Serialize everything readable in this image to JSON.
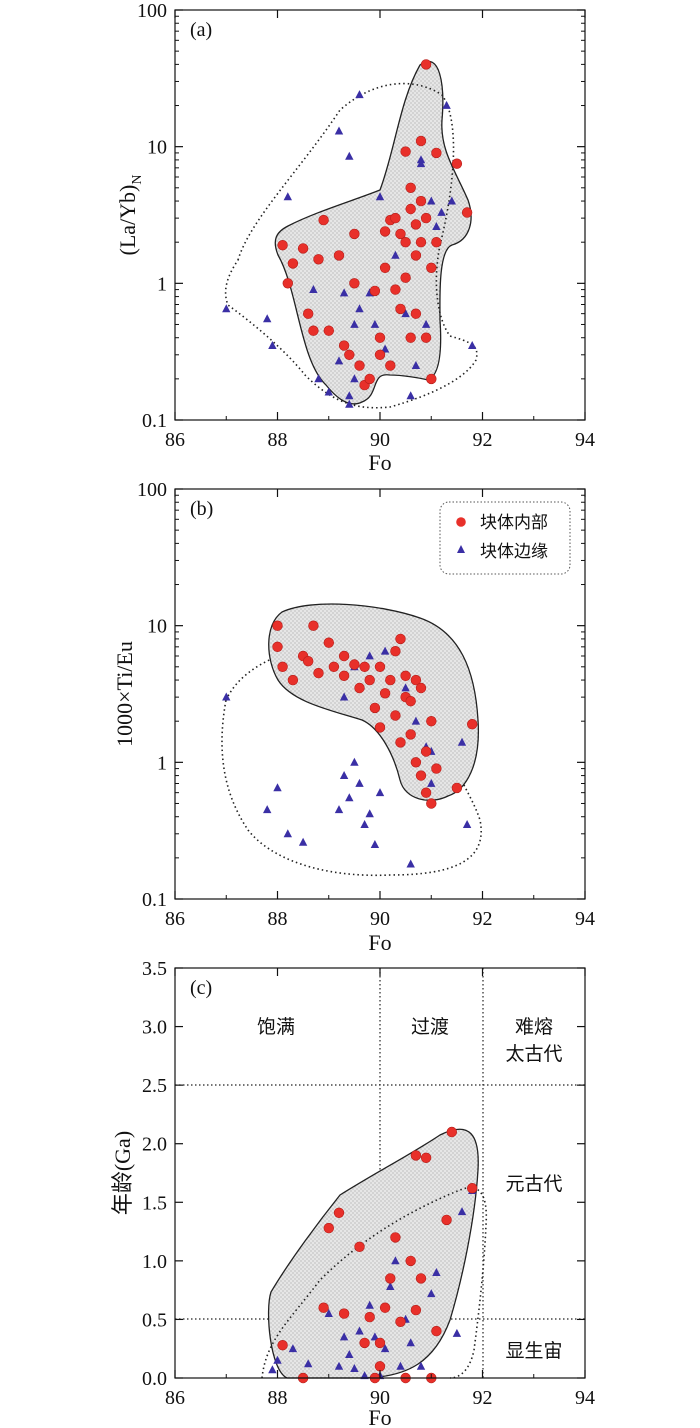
{
  "chart_data": [
    {
      "panel": "(a)",
      "type": "scatter",
      "xlabel": "Fo",
      "ylabel": "(La/Yb)",
      "ylabel_sub": "N",
      "yscale": "log",
      "xlim": [
        86,
        94
      ],
      "ylim": [
        0.1,
        100
      ],
      "xticks": [
        "86",
        "88",
        "90",
        "92",
        "94"
      ],
      "yticks": [
        "0.1",
        "1",
        "10",
        "100"
      ],
      "series": [
        {
          "name": "块体内部",
          "marker": "circle",
          "color": "#e8302a",
          "points": [
            [
              88.1,
              1.9
            ],
            [
              88.2,
              1.0
            ],
            [
              88.3,
              1.4
            ],
            [
              88.5,
              1.8
            ],
            [
              88.6,
              0.6
            ],
            [
              88.7,
              0.45
            ],
            [
              88.8,
              1.5
            ],
            [
              88.9,
              2.9
            ],
            [
              89.0,
              0.45
            ],
            [
              89.2,
              1.6
            ],
            [
              89.3,
              0.35
            ],
            [
              89.4,
              0.3
            ],
            [
              89.5,
              2.3
            ],
            [
              89.5,
              1.0
            ],
            [
              89.6,
              0.25
            ],
            [
              89.7,
              0.18
            ],
            [
              89.8,
              0.2
            ],
            [
              89.9,
              0.88
            ],
            [
              90.0,
              0.3
            ],
            [
              90.0,
              0.4
            ],
            [
              90.1,
              2.4
            ],
            [
              90.1,
              1.3
            ],
            [
              90.2,
              2.9
            ],
            [
              90.2,
              0.25
            ],
            [
              90.3,
              0.9
            ],
            [
              90.3,
              3.0
            ],
            [
              90.4,
              0.65
            ],
            [
              90.4,
              2.3
            ],
            [
              90.5,
              2.0
            ],
            [
              90.5,
              1.1
            ],
            [
              90.5,
              9.2
            ],
            [
              90.6,
              5.0
            ],
            [
              90.6,
              3.5
            ],
            [
              90.6,
              0.4
            ],
            [
              90.7,
              2.7
            ],
            [
              90.7,
              1.6
            ],
            [
              90.7,
              0.6
            ],
            [
              90.8,
              2.0
            ],
            [
              90.8,
              4.0
            ],
            [
              90.8,
              11.0
            ],
            [
              90.9,
              40.0
            ],
            [
              90.9,
              0.4
            ],
            [
              90.9,
              3.0
            ],
            [
              91.0,
              1.3
            ],
            [
              91.0,
              0.2
            ],
            [
              91.1,
              2.0
            ],
            [
              91.1,
              9.0
            ],
            [
              91.5,
              7.5
            ],
            [
              91.7,
              3.3
            ]
          ]
        },
        {
          "name": "块体边缘",
          "marker": "triangle",
          "color": "#3a2fa5",
          "points": [
            [
              87.0,
              0.65
            ],
            [
              87.8,
              0.55
            ],
            [
              87.9,
              0.35
            ],
            [
              88.2,
              4.3
            ],
            [
              88.7,
              0.9
            ],
            [
              88.8,
              0.2
            ],
            [
              89.0,
              0.16
            ],
            [
              89.2,
              0.27
            ],
            [
              89.2,
              13.0
            ],
            [
              89.3,
              0.85
            ],
            [
              89.4,
              8.5
            ],
            [
              89.4,
              0.13
            ],
            [
              89.4,
              0.15
            ],
            [
              89.5,
              0.2
            ],
            [
              89.5,
              0.5
            ],
            [
              89.6,
              24.0
            ],
            [
              89.6,
              0.65
            ],
            [
              89.8,
              0.85
            ],
            [
              89.9,
              0.5
            ],
            [
              90.0,
              4.3
            ],
            [
              90.1,
              0.33
            ],
            [
              90.3,
              1.6
            ],
            [
              90.5,
              0.6
            ],
            [
              90.6,
              0.15
            ],
            [
              90.7,
              0.25
            ],
            [
              90.8,
              8.0
            ],
            [
              90.8,
              7.5
            ],
            [
              90.9,
              0.5
            ],
            [
              91.0,
              4.0
            ],
            [
              91.1,
              2.6
            ],
            [
              91.2,
              3.3
            ],
            [
              91.3,
              20.0
            ],
            [
              91.4,
              4.0
            ],
            [
              91.8,
              0.35
            ]
          ]
        }
      ]
    },
    {
      "panel": "(b)",
      "type": "scatter",
      "xlabel": "Fo",
      "ylabel": "1000×Ti/Eu",
      "yscale": "log",
      "xlim": [
        86,
        94
      ],
      "ylim": [
        0.1,
        100
      ],
      "xticks": [
        "86",
        "88",
        "90",
        "92",
        "94"
      ],
      "yticks": [
        "0.1",
        "1",
        "10",
        "100"
      ],
      "legend": [
        "块体内部",
        "块体边缘"
      ],
      "series": [
        {
          "name": "块体内部",
          "marker": "circle",
          "color": "#e8302a",
          "points": [
            [
              88.0,
              10.0
            ],
            [
              88.0,
              7.0
            ],
            [
              88.1,
              5.0
            ],
            [
              88.3,
              4.0
            ],
            [
              88.5,
              6.0
            ],
            [
              88.6,
              5.5
            ],
            [
              88.7,
              10.0
            ],
            [
              88.8,
              4.5
            ],
            [
              89.0,
              7.5
            ],
            [
              89.1,
              5.0
            ],
            [
              89.3,
              4.3
            ],
            [
              89.3,
              6.0
            ],
            [
              89.5,
              5.2
            ],
            [
              89.6,
              3.5
            ],
            [
              89.7,
              5.0
            ],
            [
              89.8,
              4.0
            ],
            [
              89.9,
              2.5
            ],
            [
              90.0,
              5.0
            ],
            [
              90.0,
              1.8
            ],
            [
              90.1,
              3.2
            ],
            [
              90.2,
              4.0
            ],
            [
              90.3,
              6.5
            ],
            [
              90.3,
              2.2
            ],
            [
              90.4,
              8.0
            ],
            [
              90.4,
              1.4
            ],
            [
              90.5,
              4.3
            ],
            [
              90.5,
              3.0
            ],
            [
              90.6,
              1.6
            ],
            [
              90.6,
              2.8
            ],
            [
              90.7,
              1.0
            ],
            [
              90.7,
              4.0
            ],
            [
              90.8,
              0.8
            ],
            [
              90.8,
              3.5
            ],
            [
              90.9,
              1.2
            ],
            [
              90.9,
              0.6
            ],
            [
              91.0,
              0.5
            ],
            [
              91.0,
              2.0
            ],
            [
              91.1,
              0.9
            ],
            [
              91.5,
              0.65
            ],
            [
              91.8,
              1.9
            ]
          ]
        },
        {
          "name": "块体边缘",
          "marker": "triangle",
          "color": "#3a2fa5",
          "points": [
            [
              87.0,
              3.0
            ],
            [
              87.8,
              0.45
            ],
            [
              88.0,
              0.65
            ],
            [
              88.2,
              0.3
            ],
            [
              88.5,
              0.26
            ],
            [
              89.2,
              0.45
            ],
            [
              89.3,
              0.8
            ],
            [
              89.4,
              0.55
            ],
            [
              89.5,
              1.0
            ],
            [
              89.6,
              0.7
            ],
            [
              89.7,
              0.35
            ],
            [
              89.8,
              0.42
            ],
            [
              89.9,
              0.25
            ],
            [
              90.0,
              0.6
            ],
            [
              89.3,
              3.0
            ],
            [
              89.5,
              5.0
            ],
            [
              89.8,
              6.0
            ],
            [
              90.1,
              6.5
            ],
            [
              90.5,
              3.5
            ],
            [
              90.7,
              2.0
            ],
            [
              90.9,
              1.3
            ],
            [
              91.0,
              0.7
            ],
            [
              91.0,
              1.2
            ],
            [
              91.6,
              1.4
            ],
            [
              91.7,
              0.35
            ],
            [
              90.6,
              0.18
            ]
          ]
        }
      ]
    },
    {
      "panel": "(c)",
      "type": "scatter",
      "xlabel": "Fo",
      "ylabel": "年龄(Ga)",
      "yscale": "linear",
      "xlim": [
        86,
        94
      ],
      "ylim": [
        0.0,
        3.5
      ],
      "xticks": [
        "86",
        "88",
        "90",
        "92",
        "94"
      ],
      "yticks": [
        "0.0",
        "0.5",
        "1.0",
        "1.5",
        "2.0",
        "2.5",
        "3.0",
        "3.5"
      ],
      "zone_lines": {
        "vertical": [
          90,
          92
        ],
        "horizontal": [
          0.5,
          2.5
        ]
      },
      "zone_labels": {
        "columns": [
          "饱满",
          "过渡",
          "难熔"
        ],
        "ages": [
          "太古代",
          "元古代",
          "显生宙"
        ]
      },
      "series": [
        {
          "name": "块体内部",
          "marker": "circle",
          "color": "#e8302a",
          "points": [
            [
              88.1,
              0.28
            ],
            [
              88.5,
              0.0
            ],
            [
              88.9,
              0.6
            ],
            [
              89.0,
              1.28
            ],
            [
              89.2,
              1.41
            ],
            [
              89.3,
              0.55
            ],
            [
              89.6,
              1.12
            ],
            [
              89.7,
              0.3
            ],
            [
              89.8,
              0.52
            ],
            [
              89.9,
              0.0
            ],
            [
              90.0,
              0.3
            ],
            [
              90.0,
              0.1
            ],
            [
              90.1,
              0.6
            ],
            [
              90.2,
              0.85
            ],
            [
              90.3,
              1.2
            ],
            [
              90.4,
              0.48
            ],
            [
              90.5,
              0.0
            ],
            [
              90.6,
              1.0
            ],
            [
              90.7,
              0.58
            ],
            [
              90.7,
              1.9
            ],
            [
              90.8,
              0.85
            ],
            [
              90.9,
              1.88
            ],
            [
              91.0,
              0.0
            ],
            [
              91.1,
              0.4
            ],
            [
              91.3,
              1.35
            ],
            [
              91.4,
              2.1
            ],
            [
              91.8,
              1.62
            ]
          ]
        },
        {
          "name": "块体边缘",
          "marker": "triangle",
          "color": "#3a2fa5",
          "points": [
            [
              87.9,
              0.07
            ],
            [
              88.0,
              0.15
            ],
            [
              88.3,
              0.25
            ],
            [
              88.6,
              0.12
            ],
            [
              89.0,
              0.55
            ],
            [
              89.2,
              0.1
            ],
            [
              89.3,
              0.35
            ],
            [
              89.4,
              0.2
            ],
            [
              89.5,
              0.08
            ],
            [
              89.6,
              0.4
            ],
            [
              89.7,
              0.02
            ],
            [
              89.8,
              0.62
            ],
            [
              89.9,
              0.35
            ],
            [
              90.0,
              0.02
            ],
            [
              90.1,
              0.25
            ],
            [
              90.2,
              0.78
            ],
            [
              90.3,
              1.0
            ],
            [
              90.4,
              0.1
            ],
            [
              90.5,
              0.5
            ],
            [
              90.6,
              0.3
            ],
            [
              90.8,
              0.1
            ],
            [
              91.0,
              0.72
            ],
            [
              91.1,
              0.9
            ],
            [
              91.5,
              0.38
            ],
            [
              91.6,
              1.42
            ],
            [
              91.8,
              1.6
            ]
          ]
        }
      ]
    }
  ]
}
